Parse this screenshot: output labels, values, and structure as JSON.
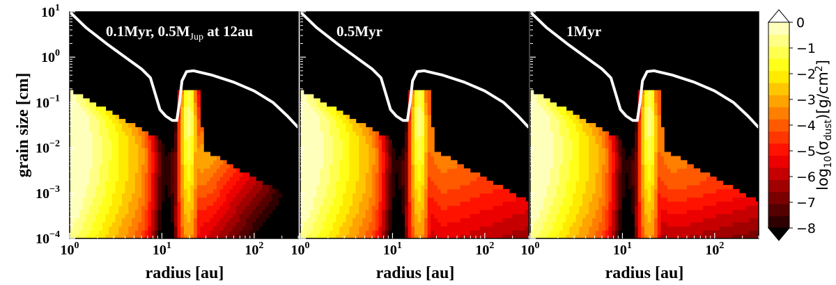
{
  "figure": {
    "ylabel": "grain size [cm]",
    "xlabel": "radius [au]"
  },
  "colorbar": {
    "label_prefix": "log",
    "label_sub10": "10",
    "label_mid": "(σ",
    "label_sub_dust": "dust",
    "label_end": ")[g/cm",
    "label_sup": "2",
    "label_close": "]",
    "ticks": [
      "0",
      "−1",
      "−2",
      "−3",
      "−4",
      "−5",
      "−6",
      "−7",
      "−8"
    ],
    "levels": 17,
    "colormap": "hot",
    "extend": "both"
  },
  "chart_data": {
    "type": "heatmap",
    "x_scale": "log",
    "y_scale": "log",
    "xlim": [
      1,
      300
    ],
    "ylim": [
      0.0001,
      10
    ],
    "x_ticks": [
      1,
      10,
      100
    ],
    "y_ticks": [
      0.0001,
      0.001,
      0.01,
      0.1,
      1,
      10
    ],
    "value_range": [
      -8,
      0
    ],
    "panels": [
      {
        "annotation": {
          "text": "0.1Myr, 0.5M",
          "sub": "Jup",
          "tail": " at 12au"
        },
        "planet_radius_au": 12,
        "bump_center_au": 19,
        "stage": 0
      },
      {
        "annotation": {
          "text": "0.5Myr",
          "sub": "",
          "tail": ""
        },
        "planet_radius_au": 12,
        "bump_center_au": 19,
        "stage": 1
      },
      {
        "annotation": {
          "text": "1Myr",
          "sub": "",
          "tail": ""
        },
        "planet_radius_au": 12,
        "bump_center_au": 19,
        "stage": 2
      }
    ],
    "fragmentation_barrier": {
      "color": "#ffffff",
      "points": [
        [
          1.0,
          10
        ],
        [
          1.5,
          4.5
        ],
        [
          2.5,
          2.0
        ],
        [
          4.0,
          1.0
        ],
        [
          6.0,
          0.55
        ],
        [
          7.5,
          0.35
        ],
        [
          8.5,
          0.15
        ],
        [
          9.5,
          0.07
        ],
        [
          11,
          0.05
        ],
        [
          13,
          0.04
        ],
        [
          14.5,
          0.04
        ],
        [
          15.5,
          0.1
        ],
        [
          16.5,
          0.3
        ],
        [
          18.5,
          0.48
        ],
        [
          22,
          0.5
        ],
        [
          35,
          0.4
        ],
        [
          60,
          0.28
        ],
        [
          100,
          0.18
        ],
        [
          160,
          0.1
        ],
        [
          230,
          0.05
        ],
        [
          300,
          0.028
        ]
      ]
    }
  }
}
